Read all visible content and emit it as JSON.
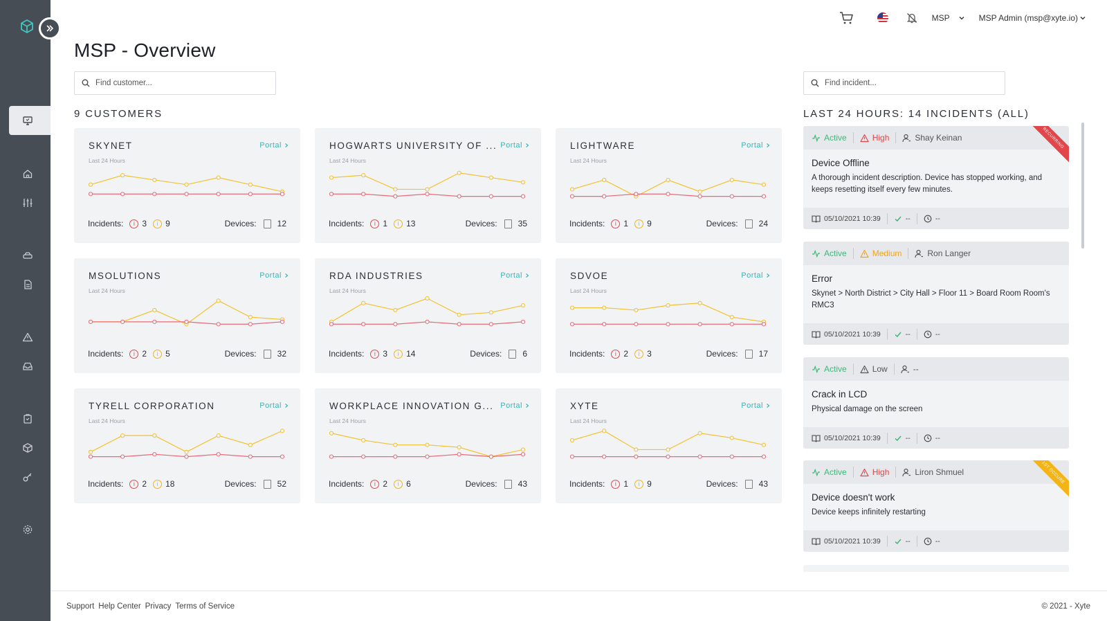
{
  "header": {
    "org_selector": "MSP",
    "user_menu": "MSP Admin (msp@xyte.io)"
  },
  "page": {
    "title": "MSP - Overview"
  },
  "customer_search": {
    "placeholder": "Find customer..."
  },
  "incident_search": {
    "placeholder": "Find incident..."
  },
  "customers": {
    "heading": "9 CUSTOMERS",
    "items": [
      {
        "name": "SKYNET",
        "subtitle": "Last 24 Hours",
        "portal_label": "Portal",
        "incidents_label": "Incidents:",
        "critical": "3",
        "warning": "9",
        "devices_label": "Devices:",
        "devices": "12",
        "trend": {
          "yellow": [
            6,
            10,
            8,
            6,
            9,
            6,
            3
          ],
          "red": [
            2,
            2,
            2,
            2,
            2,
            2,
            2
          ]
        }
      },
      {
        "name": "HOGWARTS UNIVERSITY OF ...",
        "subtitle": "Last 24 Hours",
        "portal_label": "Portal",
        "incidents_label": "Incidents:",
        "critical": "1",
        "warning": "13",
        "devices_label": "Devices:",
        "devices": "35",
        "trend": {
          "yellow": [
            9,
            10,
            4,
            4,
            11,
            9,
            7
          ],
          "red": [
            2,
            2,
            1,
            2,
            1,
            1,
            1
          ]
        }
      },
      {
        "name": "LIGHTWARE",
        "subtitle": "Last 24 Hours",
        "portal_label": "Portal",
        "incidents_label": "Incidents:",
        "critical": "1",
        "warning": "9",
        "devices_label": "Devices:",
        "devices": "24",
        "trend": {
          "yellow": [
            4,
            8,
            1,
            8,
            3,
            8,
            6
          ],
          "red": [
            1,
            1,
            2,
            2,
            1,
            1,
            1
          ]
        }
      },
      {
        "name": "MSOLUTIONS",
        "subtitle": "Last 24 Hours",
        "portal_label": "Portal",
        "incidents_label": "Incidents:",
        "critical": "2",
        "warning": "5",
        "devices_label": "Devices:",
        "devices": "32",
        "trend": {
          "yellow": [
            3,
            3,
            8,
            2,
            12,
            5,
            4
          ],
          "red": [
            3,
            3,
            3,
            3,
            2,
            2,
            3
          ]
        }
      },
      {
        "name": "RDA INDUSTRIES",
        "subtitle": "Last 24 Hours",
        "portal_label": "Portal",
        "incidents_label": "Incidents:",
        "critical": "3",
        "warning": "14",
        "devices_label": "Devices:",
        "devices": "6",
        "trend": {
          "yellow": [
            3,
            11,
            8,
            13,
            6,
            7,
            10
          ],
          "red": [
            2,
            2,
            2,
            3,
            2,
            2,
            3
          ]
        }
      },
      {
        "name": "SDVOE",
        "subtitle": "Last 24 Hours",
        "portal_label": "Portal",
        "incidents_label": "Incidents:",
        "critical": "2",
        "warning": "3",
        "devices_label": "Devices:",
        "devices": "17",
        "trend": {
          "yellow": [
            9,
            9,
            8,
            10,
            11,
            5,
            3
          ],
          "red": [
            2,
            2,
            2,
            2,
            2,
            2,
            2
          ]
        }
      },
      {
        "name": "TYRELL CORPORATION",
        "subtitle": "Last 24 Hours",
        "portal_label": "Portal",
        "incidents_label": "Incidents:",
        "critical": "2",
        "warning": "18",
        "devices_label": "Devices:",
        "devices": "52",
        "trend": {
          "yellow": [
            3,
            10,
            10,
            3,
            10,
            6,
            12
          ],
          "red": [
            1,
            1,
            2,
            1,
            2,
            1,
            1
          ]
        }
      },
      {
        "name": "WORKPLACE INNOVATION G...",
        "subtitle": "Last 24 Hours",
        "portal_label": "Portal",
        "incidents_label": "Incidents:",
        "critical": "2",
        "warning": "6",
        "devices_label": "Devices:",
        "devices": "43",
        "trend": {
          "yellow": [
            11,
            8,
            6,
            6,
            5,
            1,
            4
          ],
          "red": [
            1,
            1,
            1,
            1,
            2,
            1,
            2
          ]
        }
      },
      {
        "name": "XYTE",
        "subtitle": "Last 24 Hours",
        "portal_label": "Portal",
        "incidents_label": "Incidents:",
        "critical": "1",
        "warning": "9",
        "devices_label": "Devices:",
        "devices": "43",
        "trend": {
          "yellow": [
            8,
            12,
            4,
            4,
            11,
            9,
            6
          ],
          "red": [
            1,
            1,
            1,
            1,
            1,
            1,
            1
          ]
        }
      }
    ]
  },
  "incidents": {
    "heading": "LAST 24 HOURS: 14 INCIDENTS (ALL)",
    "items": [
      {
        "status": "Active",
        "severity": "High",
        "assignee": "Shay Keinan",
        "title": "Device Offline",
        "description": "A thorough incident description. Device has stopped working, and keeps resetting itself every few minutes.",
        "date": "05/10/2021 10:39",
        "resolved": "--",
        "duration": "--",
        "ribbon": "RECURRING",
        "ribbon_color": "#e3464a"
      },
      {
        "status": "Active",
        "severity": "Medium",
        "assignee": "Ron Langer",
        "title": "Error",
        "description": "Skynet > North District > City Hall > Floor 11 > Board Room Room's RMC3",
        "date": "05/10/2021 10:39",
        "resolved": "--",
        "duration": "--",
        "ribbon": "",
        "ribbon_color": ""
      },
      {
        "status": "Active",
        "severity": "Low",
        "assignee": "--",
        "title": "Crack in LCD",
        "description": "Physical damage on the screen",
        "date": "05/10/2021 10:39",
        "resolved": "--",
        "duration": "--",
        "ribbon": "",
        "ribbon_color": ""
      },
      {
        "status": "Active",
        "severity": "High",
        "assignee": "Liron Shmuel",
        "title": "Device doesn't work",
        "description": "Device keeps infinitely restarting",
        "date": "05/10/2021 10:39",
        "resolved": "--",
        "duration": "--",
        "ribbon": "1ST OCCURE",
        "ribbon_color": "#f2b417"
      }
    ]
  },
  "footer": {
    "links": [
      "Support",
      "Help Center",
      "Privacy",
      "Terms of Service"
    ],
    "copyright": "© 2021 - Xyte"
  },
  "colors": {
    "accent": "#39b5b5",
    "active_green": "#3cb878",
    "high_red": "#e3464a",
    "medium_orange": "#f2a417",
    "trend_yellow": "#f2c230",
    "trend_red": "#e86a78",
    "sidebar_bg": "#474d54"
  }
}
